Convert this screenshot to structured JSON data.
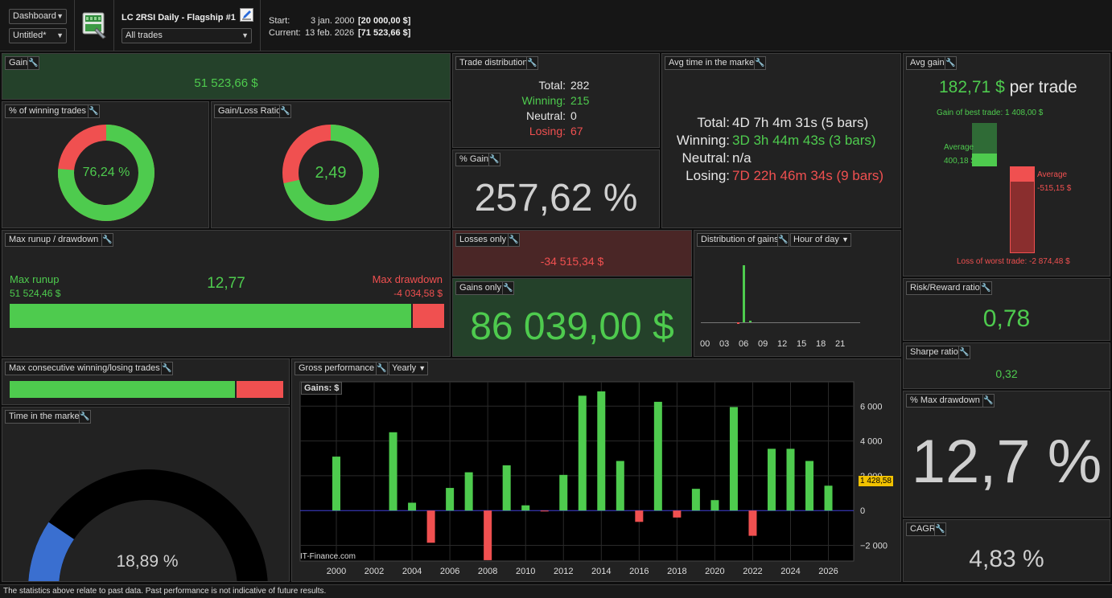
{
  "toolbar": {
    "view_select": "Dashboard",
    "doc_select": "Untitled*",
    "strategy_title": "LC 2RSI Daily - Flagship #1",
    "trades_filter": "All trades",
    "start_label": "Start:",
    "start_date": "3 jan. 2000",
    "start_value": "[20 000,00 $]",
    "current_label": "Current:",
    "current_date": "13 feb. 2026",
    "current_value": "[71 523,66 $]"
  },
  "gain": {
    "title": "Gain",
    "value": "51 523,66 $"
  },
  "win_pct": {
    "title": "% of winning trades",
    "value": "76,24 %",
    "fraction": 0.7624
  },
  "gl_ratio": {
    "title": "Gain/Loss Ratio",
    "value": "2,49",
    "fraction": 0.7135
  },
  "trade_dist": {
    "title": "Trade distribution",
    "total_label": "Total:",
    "total": "282",
    "winning_label": "Winning:",
    "winning": "215",
    "neutral_label": "Neutral:",
    "neutral": "0",
    "losing_label": "Losing:",
    "losing": "67"
  },
  "pct_gain": {
    "title": "% Gain",
    "value": "257,62 %"
  },
  "avg_time": {
    "title": "Avg time in the market",
    "total_label": "Total:",
    "total": "4D 7h 4m 31s (5 bars)",
    "winning_label": "Winning:",
    "winning": "3D 3h 44m 43s (3 bars)",
    "neutral_label": "Neutral:",
    "neutral": "n/a",
    "losing_label": "Losing:",
    "losing": "7D 22h 46m 34s (9 bars)"
  },
  "avg_gain": {
    "title": "Avg gain",
    "value": "182,71 $",
    "suffix": "per trade",
    "best_label": "Gain of best trade: 1 408,00 $",
    "avg_win_label": "Average",
    "avg_win_value": "400,18 $",
    "avg_loss_label": "Average",
    "avg_loss_value": "-515,15 $",
    "worst_label": "Loss of worst trade: -2 874,48 $"
  },
  "runup": {
    "title": "Max runup / drawdown",
    "runup_label": "Max runup",
    "runup_value": "51 524,46 $",
    "ratio": "12,77",
    "dd_label": "Max drawdown",
    "dd_value": "-4 034,58 $",
    "fraction": 0.9274
  },
  "losses_only": {
    "title": "Losses only",
    "value": "-34 515,34 $"
  },
  "gains_only": {
    "title": "Gains only",
    "value": "86 039,00 $"
  },
  "dist_gains": {
    "title": "Distribution of gains",
    "mode": "Hour of day",
    "ticks": [
      "00",
      "03",
      "06",
      "09",
      "12",
      "15",
      "18",
      "21"
    ]
  },
  "rr": {
    "title": "Risk/Reward ratio",
    "value": "0,78"
  },
  "sharpe": {
    "title": "Sharpe ratio",
    "value": "0,32"
  },
  "max_dd": {
    "title": "% Max drawdown",
    "value": "12,7 %"
  },
  "cagr": {
    "title": "CAGR",
    "value": "4,83 %"
  },
  "consec": {
    "title": "Max consecutive winning/losing trades",
    "fraction": 0.83
  },
  "time_market": {
    "title": "Time in the market",
    "value": "18,89 %",
    "fraction": 0.1889
  },
  "gross": {
    "title": "Gross performance",
    "period": "Yearly",
    "chart_label": "Gains: $",
    "watermark": "IT-Finance.com",
    "marker": "1 428,58"
  },
  "chart_data": {
    "type": "bar",
    "title": "Gains: $",
    "x": [
      2000,
      2001,
      2002,
      2003,
      2004,
      2005,
      2006,
      2007,
      2008,
      2009,
      2010,
      2011,
      2012,
      2013,
      2014,
      2015,
      2016,
      2017,
      2018,
      2019,
      2020,
      2021,
      2022,
      2023,
      2024,
      2025,
      2026
    ],
    "values": [
      3100,
      0,
      0,
      4500,
      450,
      -1850,
      1300,
      2200,
      -2850,
      2600,
      300,
      -50,
      2050,
      6600,
      6850,
      2850,
      -650,
      6250,
      -400,
      1250,
      600,
      5950,
      -1450,
      3550,
      3550,
      2850,
      1428.58
    ],
    "x_ticks": [
      "2000",
      "2002",
      "2004",
      "2006",
      "2008",
      "2010",
      "2012",
      "2014",
      "2016",
      "2018",
      "2020",
      "2022",
      "2024",
      "2026"
    ],
    "y_ticks": [
      "6 000",
      "4 000",
      "2 000",
      "0",
      "−2 000"
    ],
    "y_tick_values": [
      6000,
      4000,
      2000,
      0,
      -2000
    ],
    "ylim": [
      -2900,
      7400
    ]
  },
  "footer": "The statistics above relate to past data. Past performance is not indicative of future results.",
  "colors": {
    "green": "#4ecb4e",
    "red": "#f05050",
    "blue": "#3a6fd0"
  }
}
